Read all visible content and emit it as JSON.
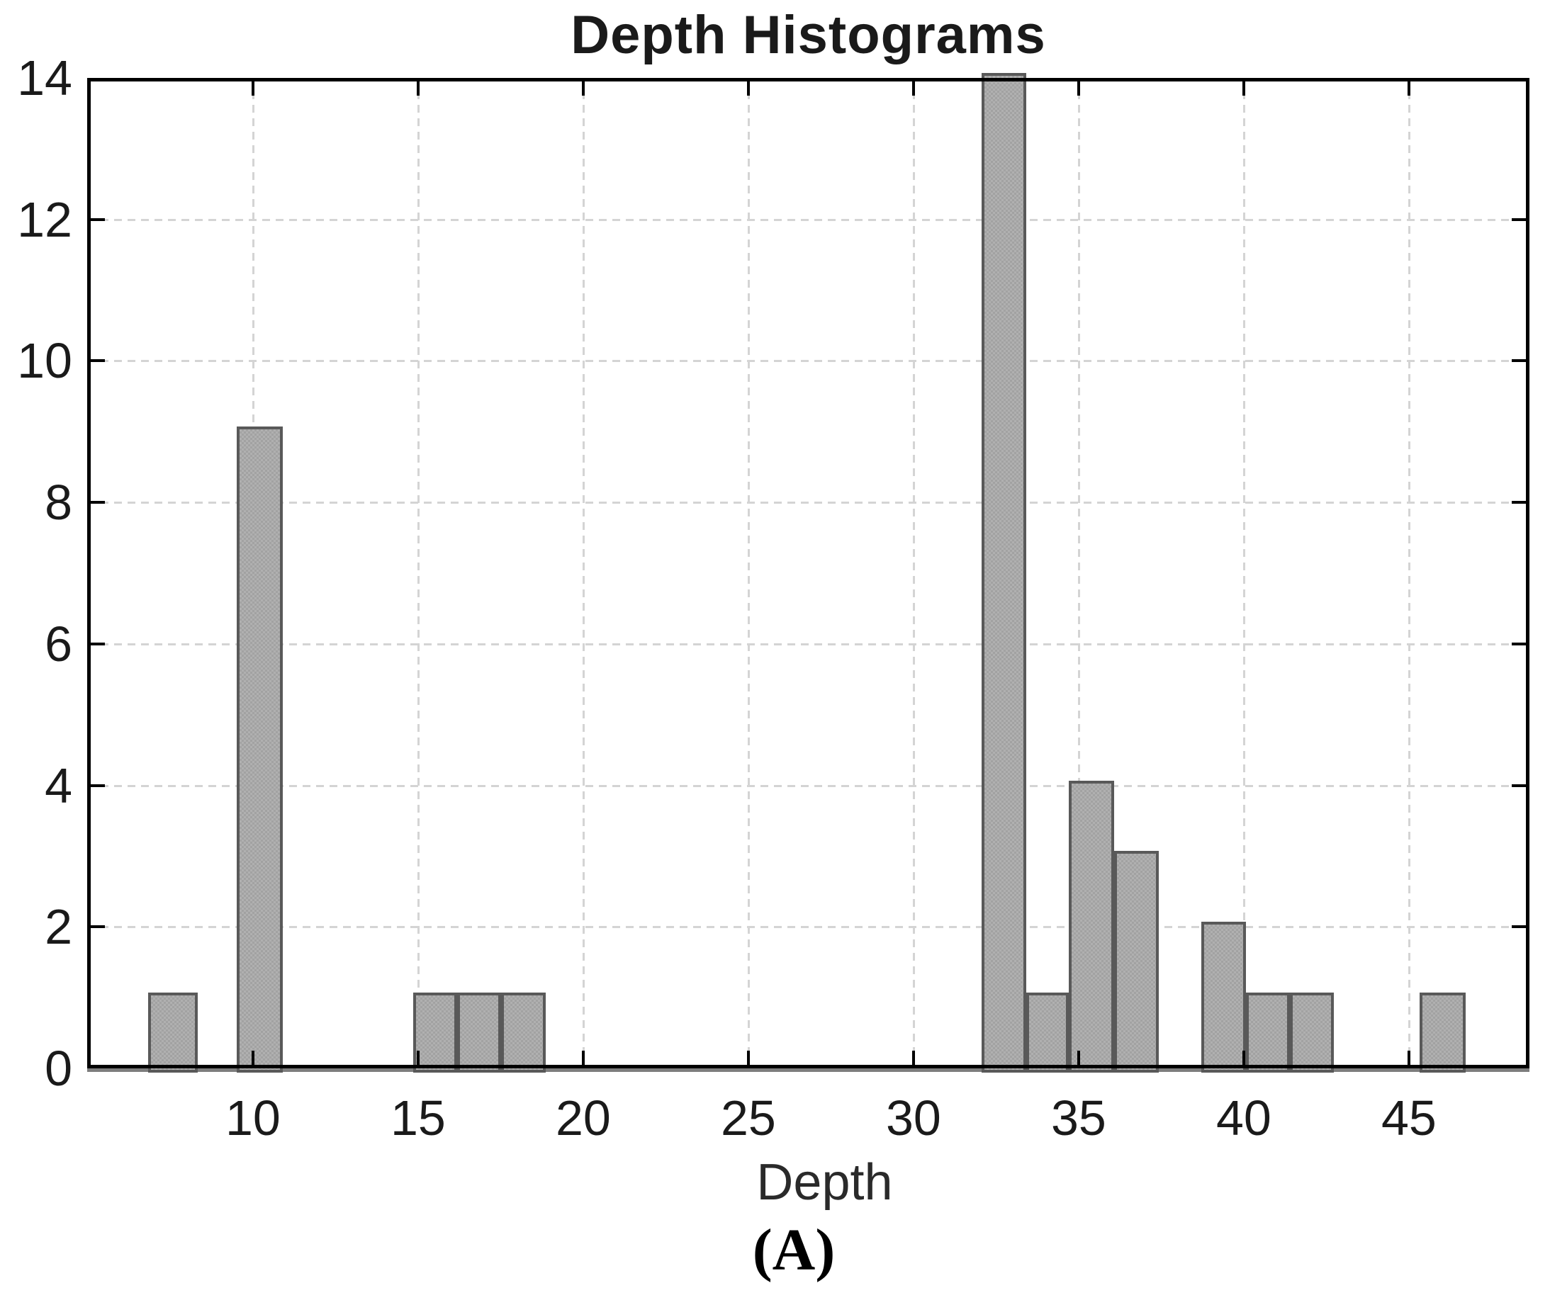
{
  "chart_data": {
    "type": "bar",
    "subtype": "histogram",
    "title": "Depth Histograms",
    "xlabel": "Depth",
    "ylabel": "",
    "caption": "(A)",
    "xlim": [
      4.98,
      48.65
    ],
    "ylim": [
      0,
      14
    ],
    "x_ticks": [
      10,
      15,
      20,
      25,
      30,
      35,
      40,
      45
    ],
    "y_ticks": [
      0,
      2,
      4,
      6,
      8,
      10,
      12,
      14
    ],
    "grid": true,
    "grid_style": "dashed",
    "legend": "none",
    "bars": [
      {
        "x0": 6.83,
        "x1": 8.33,
        "count": 1
      },
      {
        "x0": 9.51,
        "x1": 10.91,
        "count": 9
      },
      {
        "x0": 14.85,
        "x1": 16.18,
        "count": 1
      },
      {
        "x0": 16.18,
        "x1": 17.51,
        "count": 1
      },
      {
        "x0": 17.51,
        "x1": 18.86,
        "count": 1
      },
      {
        "x0": 32.06,
        "x1": 33.41,
        "count": 14
      },
      {
        "x0": 33.41,
        "x1": 34.7,
        "count": 1
      },
      {
        "x0": 34.7,
        "x1": 36.07,
        "count": 4
      },
      {
        "x0": 36.07,
        "x1": 37.42,
        "count": 3
      },
      {
        "x0": 38.71,
        "x1": 40.06,
        "count": 2
      },
      {
        "x0": 40.06,
        "x1": 41.39,
        "count": 1
      },
      {
        "x0": 41.39,
        "x1": 42.72,
        "count": 1
      },
      {
        "x0": 45.32,
        "x1": 46.72,
        "count": 1
      }
    ],
    "colors": {
      "bar_fill": "#b0b0b0",
      "bar_fill_check": "#a2a2a2",
      "bar_edge": "#595959",
      "grid": "#d4d4d4",
      "axis": "#000000",
      "baseline_edge": "#7d7d7d",
      "text": "#1a1a1a",
      "background": "#ffffff"
    }
  }
}
